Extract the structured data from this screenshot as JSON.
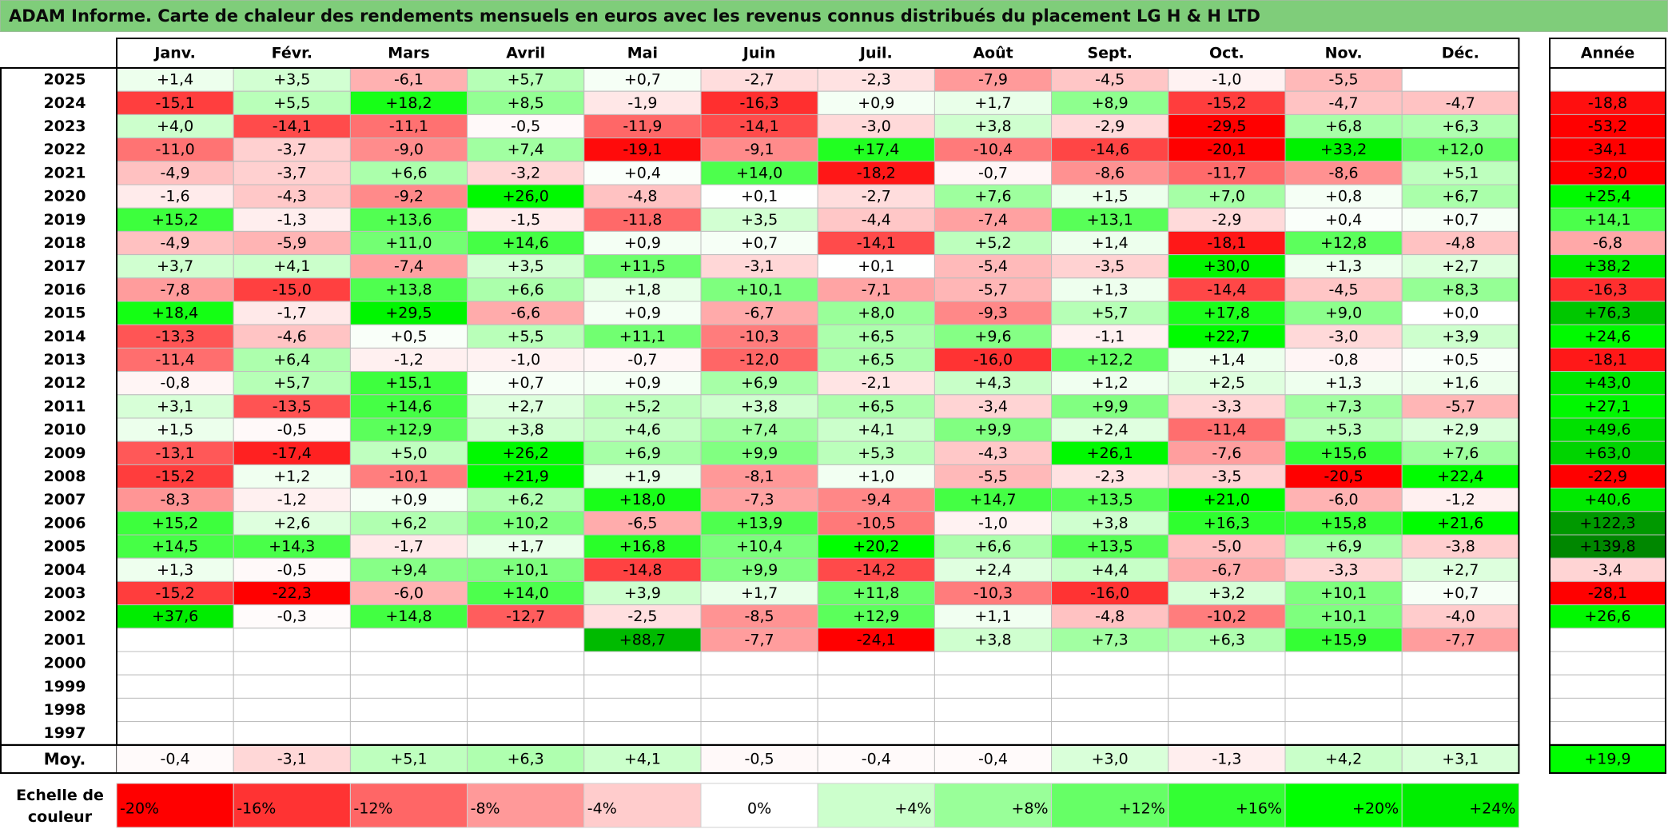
{
  "title": "ADAM Informe. Carte de chaleur des rendements mensuels en euros avec les revenus connus distribués du placement LG H & H LTD",
  "chart_data": {
    "type": "heatmap",
    "columns": [
      "Janv.",
      "Févr.",
      "Mars",
      "Avril",
      "Mai",
      "Juin",
      "Juil.",
      "Août",
      "Sept.",
      "Oct.",
      "Nov.",
      "Déc."
    ],
    "annual_header": "Année",
    "rows": [
      {
        "year": "2025",
        "months": [
          "+1,4",
          "+3,5",
          "-6,1",
          "+5,7",
          "+0,7",
          "-2,7",
          "-2,3",
          "-7,9",
          "-4,5",
          "-1,0",
          "-5,5",
          ""
        ],
        "annual": ""
      },
      {
        "year": "2024",
        "months": [
          "-15,1",
          "+5,5",
          "+18,2",
          "+8,5",
          "-1,9",
          "-16,3",
          "+0,9",
          "+1,7",
          "+8,9",
          "-15,2",
          "-4,7",
          "-4,7"
        ],
        "annual": "-18,8"
      },
      {
        "year": "2023",
        "months": [
          "+4,0",
          "-14,1",
          "-11,1",
          "-0,5",
          "-11,9",
          "-14,1",
          "-3,0",
          "+3,8",
          "-2,9",
          "-29,5",
          "+6,8",
          "+6,3"
        ],
        "annual": "-53,2"
      },
      {
        "year": "2022",
        "months": [
          "-11,0",
          "-3,7",
          "-9,0",
          "+7,4",
          "-19,1",
          "-9,1",
          "+17,4",
          "-10,4",
          "-14,6",
          "-20,1",
          "+33,2",
          "+12,0"
        ],
        "annual": "-34,1"
      },
      {
        "year": "2021",
        "months": [
          "-4,9",
          "-3,7",
          "+6,6",
          "-3,2",
          "+0,4",
          "+14,0",
          "-18,2",
          "-0,7",
          "-8,6",
          "-11,7",
          "-8,6",
          "+5,1"
        ],
        "annual": "-32,0"
      },
      {
        "year": "2020",
        "months": [
          "-1,6",
          "-4,3",
          "-9,2",
          "+26,0",
          "-4,8",
          "+0,1",
          "-2,7",
          "+7,6",
          "+1,5",
          "+7,0",
          "+0,8",
          "+6,7"
        ],
        "annual": "+25,4"
      },
      {
        "year": "2019",
        "months": [
          "+15,2",
          "-1,3",
          "+13,6",
          "-1,5",
          "-11,8",
          "+3,5",
          "-4,4",
          "-7,4",
          "+13,1",
          "-2,9",
          "+0,4",
          "+0,7"
        ],
        "annual": "+14,1"
      },
      {
        "year": "2018",
        "months": [
          "-4,9",
          "-5,9",
          "+11,0",
          "+14,6",
          "+0,9",
          "+0,7",
          "-14,1",
          "+5,2",
          "+1,4",
          "-18,1",
          "+12,8",
          "-4,8"
        ],
        "annual": "-6,8"
      },
      {
        "year": "2017",
        "months": [
          "+3,7",
          "+4,1",
          "-7,4",
          "+3,5",
          "+11,5",
          "-3,1",
          "+0,1",
          "-5,4",
          "-3,5",
          "+30,0",
          "+1,3",
          "+2,7"
        ],
        "annual": "+38,2"
      },
      {
        "year": "2016",
        "months": [
          "-7,8",
          "-15,0",
          "+13,8",
          "+6,6",
          "+1,8",
          "+10,1",
          "-7,1",
          "-5,7",
          "+1,3",
          "-14,4",
          "-4,5",
          "+8,3"
        ],
        "annual": "-16,3"
      },
      {
        "year": "2015",
        "months": [
          "+18,4",
          "-1,7",
          "+29,5",
          "-6,6",
          "+0,9",
          "-6,7",
          "+8,0",
          "-9,3",
          "+5,7",
          "+17,8",
          "+9,0",
          "+0,0"
        ],
        "annual": "+76,3"
      },
      {
        "year": "2014",
        "months": [
          "-13,3",
          "-4,6",
          "+0,5",
          "+5,5",
          "+11,1",
          "-10,3",
          "+6,5",
          "+9,6",
          "-1,1",
          "+22,7",
          "-3,0",
          "+3,9"
        ],
        "annual": "+24,6"
      },
      {
        "year": "2013",
        "months": [
          "-11,4",
          "+6,4",
          "-1,2",
          "-1,0",
          "-0,7",
          "-12,0",
          "+6,5",
          "-16,0",
          "+12,2",
          "+1,4",
          "-0,8",
          "+0,5"
        ],
        "annual": "-18,1"
      },
      {
        "year": "2012",
        "months": [
          "-0,8",
          "+5,7",
          "+15,1",
          "+0,7",
          "+0,9",
          "+6,9",
          "-2,1",
          "+4,3",
          "+1,2",
          "+2,5",
          "+1,3",
          "+1,6"
        ],
        "annual": "+43,0"
      },
      {
        "year": "2011",
        "months": [
          "+3,1",
          "-13,5",
          "+14,6",
          "+2,7",
          "+5,2",
          "+3,8",
          "+6,5",
          "-3,4",
          "+9,9",
          "-3,3",
          "+7,3",
          "-5,7"
        ],
        "annual": "+27,1"
      },
      {
        "year": "2010",
        "months": [
          "+1,5",
          "-0,5",
          "+12,9",
          "+3,8",
          "+4,6",
          "+7,4",
          "+4,1",
          "+9,9",
          "+2,4",
          "-11,4",
          "+5,3",
          "+2,9"
        ],
        "annual": "+49,6"
      },
      {
        "year": "2009",
        "months": [
          "-13,1",
          "-17,4",
          "+5,0",
          "+26,2",
          "+6,9",
          "+9,9",
          "+5,3",
          "-4,3",
          "+26,1",
          "-7,6",
          "+15,6",
          "+7,6"
        ],
        "annual": "+63,0"
      },
      {
        "year": "2008",
        "months": [
          "-15,2",
          "+1,2",
          "-10,1",
          "+21,9",
          "+1,9",
          "-8,1",
          "+1,0",
          "-5,5",
          "-2,3",
          "-3,5",
          "-20,5",
          "+22,4"
        ],
        "annual": "-22,9"
      },
      {
        "year": "2007",
        "months": [
          "-8,3",
          "-1,2",
          "+0,9",
          "+6,2",
          "+18,0",
          "-7,3",
          "-9,4",
          "+14,7",
          "+13,5",
          "+21,0",
          "-6,0",
          "-1,2"
        ],
        "annual": "+40,6"
      },
      {
        "year": "2006",
        "months": [
          "+15,2",
          "+2,6",
          "+6,2",
          "+10,2",
          "-6,5",
          "+13,9",
          "-10,5",
          "-1,0",
          "+3,8",
          "+16,3",
          "+15,8",
          "+21,6"
        ],
        "annual": "+122,3"
      },
      {
        "year": "2005",
        "months": [
          "+14,5",
          "+14,3",
          "-1,7",
          "+1,7",
          "+16,8",
          "+10,4",
          "+20,2",
          "+6,6",
          "+13,5",
          "-5,0",
          "+6,9",
          "-3,8"
        ],
        "annual": "+139,8"
      },
      {
        "year": "2004",
        "months": [
          "+1,3",
          "-0,5",
          "+9,4",
          "+10,1",
          "-14,8",
          "+9,9",
          "-14,2",
          "+2,4",
          "+4,4",
          "-6,7",
          "-3,3",
          "+2,7"
        ],
        "annual": "-3,4"
      },
      {
        "year": "2003",
        "months": [
          "-15,2",
          "-22,3",
          "-6,0",
          "+14,0",
          "+3,9",
          "+1,7",
          "+11,8",
          "-10,3",
          "-16,0",
          "+3,2",
          "+10,1",
          "+0,7"
        ],
        "annual": "-28,1"
      },
      {
        "year": "2002",
        "months": [
          "+37,6",
          "-0,3",
          "+14,8",
          "-12,7",
          "-2,5",
          "-8,5",
          "+12,9",
          "+1,1",
          "-4,8",
          "-10,2",
          "+10,1",
          "-4,0"
        ],
        "annual": "+26,6"
      },
      {
        "year": "2001",
        "months": [
          "",
          "",
          "",
          "",
          "+88,7",
          "-7,7",
          "-24,1",
          "+3,8",
          "+7,3",
          "+6,3",
          "+15,9",
          "-7,7"
        ],
        "annual": ""
      },
      {
        "year": "2000",
        "months": [
          "",
          "",
          "",
          "",
          "",
          "",
          "",
          "",
          "",
          "",
          "",
          ""
        ],
        "annual": ""
      },
      {
        "year": "1999",
        "months": [
          "",
          "",
          "",
          "",
          "",
          "",
          "",
          "",
          "",
          "",
          "",
          ""
        ],
        "annual": ""
      },
      {
        "year": "1998",
        "months": [
          "",
          "",
          "",
          "",
          "",
          "",
          "",
          "",
          "",
          "",
          "",
          ""
        ],
        "annual": ""
      },
      {
        "year": "1997",
        "months": [
          "",
          "",
          "",
          "",
          "",
          "",
          "",
          "",
          "",
          "",
          "",
          ""
        ],
        "annual": ""
      }
    ],
    "average": {
      "label": "Moy.",
      "months": [
        "-0,4",
        "-3,1",
        "+5,1",
        "+6,3",
        "+4,1",
        "-0,5",
        "-0,4",
        "-0,4",
        "+3,0",
        "-1,3",
        "+4,2",
        "+3,1"
      ],
      "annual": "+19,9"
    },
    "color_scale": {
      "label": "Echelle de couleur",
      "steps": [
        {
          "label": "-20%",
          "color": "#ff0000"
        },
        {
          "label": "-16%",
          "color": "#ff3333"
        },
        {
          "label": "-12%",
          "color": "#ff6666"
        },
        {
          "label": "-8%",
          "color": "#ff9999"
        },
        {
          "label": "-4%",
          "color": "#ffcccc"
        },
        {
          "label": "0%",
          "color": "#ffffff"
        },
        {
          "label": "+4%",
          "color": "#ccffcc"
        },
        {
          "label": "+8%",
          "color": "#99ff99"
        },
        {
          "label": "+12%",
          "color": "#66ff66"
        },
        {
          "label": "+16%",
          "color": "#33ff33"
        },
        {
          "label": "+20%",
          "color": "#00ff00"
        },
        {
          "label": "+24%",
          "color": "#00ee00"
        }
      ]
    }
  }
}
